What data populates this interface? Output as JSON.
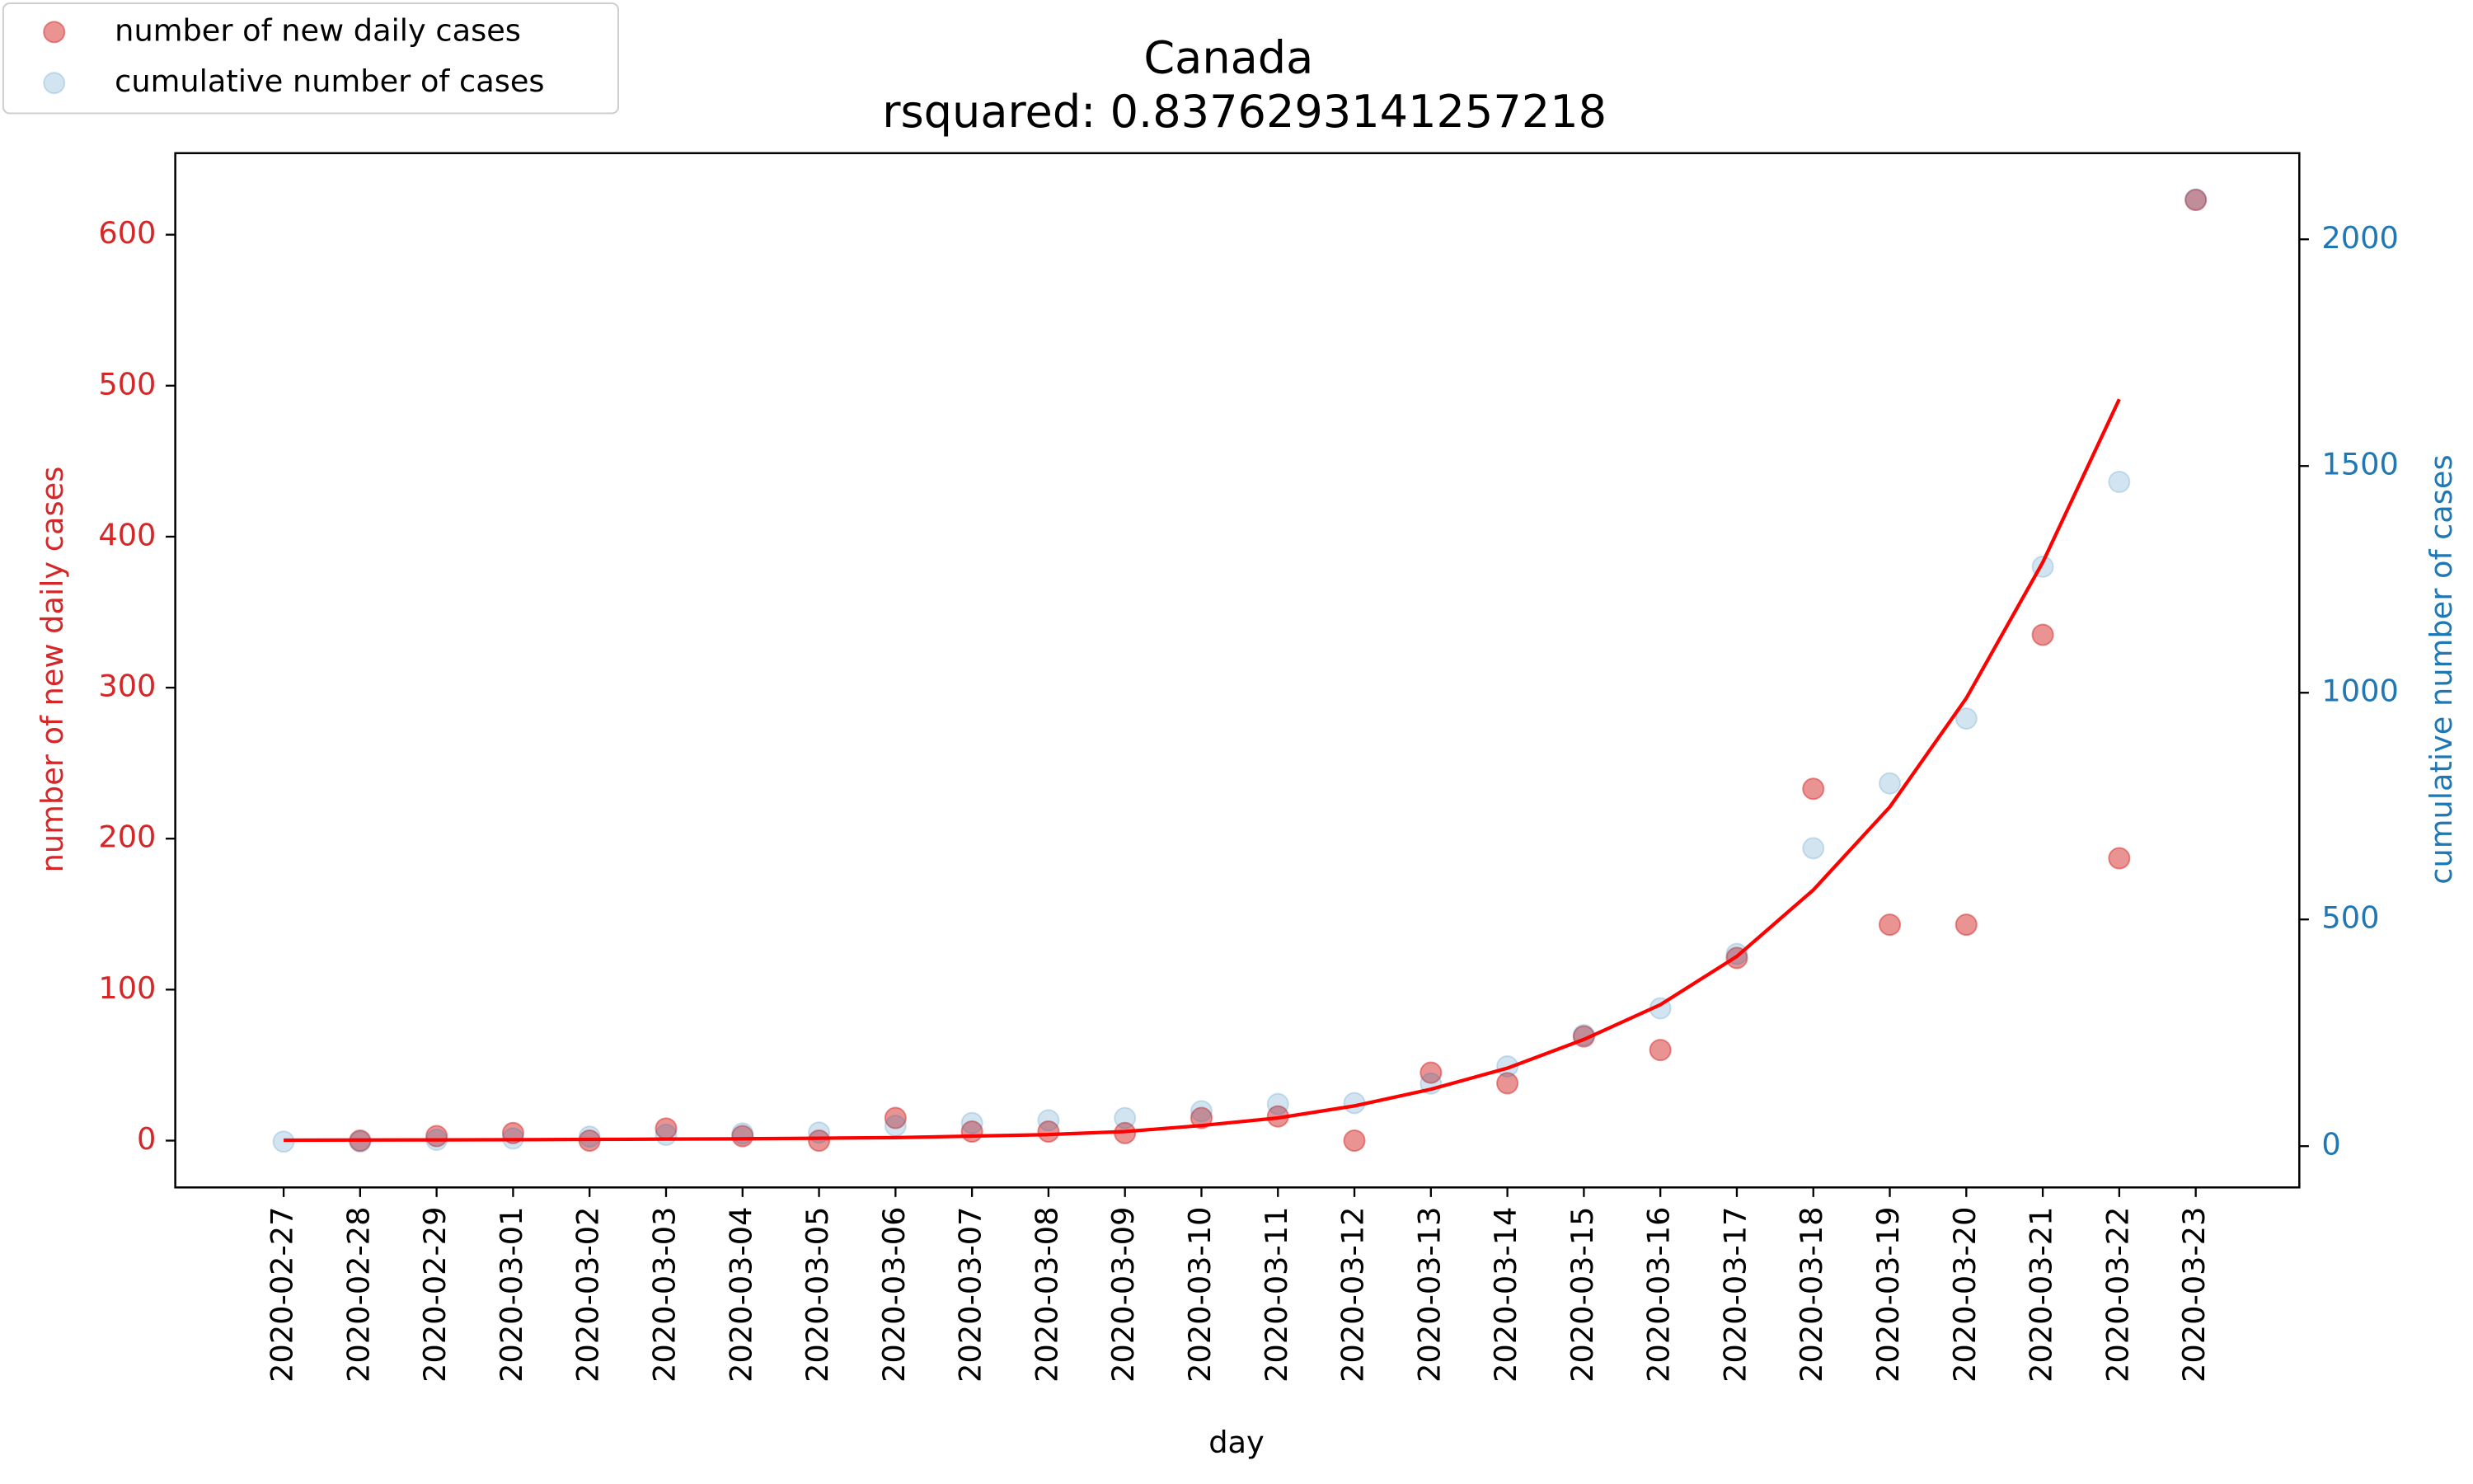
{
  "chart_data": {
    "type": "scatter",
    "title": "Canada",
    "subtitle": "rsquared: 0.8376293141257218",
    "x_label": "day",
    "y_label": "number of new daily cases",
    "y2_label": "cumulative number of cases",
    "categories": [
      "2020-02-27",
      "2020-02-28",
      "2020-02-29",
      "2020-03-01",
      "2020-03-02",
      "2020-03-03",
      "2020-03-04",
      "2020-03-05",
      "2020-03-06",
      "2020-03-07",
      "2020-03-08",
      "2020-03-09",
      "2020-03-10",
      "2020-03-11",
      "2020-03-12",
      "2020-03-13",
      "2020-03-14",
      "2020-03-15",
      "2020-03-16",
      "2020-03-17",
      "2020-03-18",
      "2020-03-19",
      "2020-03-20",
      "2020-03-21",
      "2020-03-22",
      "2020-03-23"
    ],
    "series": [
      {
        "name": "number of new daily cases",
        "color": "#d62728",
        "values": [
          null,
          0,
          3,
          5,
          0,
          8,
          3,
          0,
          15,
          6,
          6,
          5,
          15,
          16,
          0,
          45,
          38,
          69,
          60,
          121,
          233,
          143,
          143,
          335,
          187,
          623
        ]
      },
      {
        "name": "cumulative number of cases",
        "color": "#1f77b4",
        "axis": "y2",
        "values": [
          10,
          10,
          14,
          17,
          21,
          25,
          28,
          30,
          45,
          51,
          57,
          62,
          77,
          93,
          95,
          138,
          176,
          245,
          304,
          424,
          657,
          800,
          943,
          1278,
          1465,
          2088
        ]
      }
    ],
    "fit_line": {
      "color": "#ff0000",
      "values": [
        0.3,
        0.4,
        0.5,
        0.6,
        0.8,
        1.0,
        1.2,
        1.6,
        2,
        3,
        4,
        6,
        10,
        15,
        23,
        34,
        48,
        67,
        90,
        122,
        166,
        221,
        293,
        383,
        491,
        null
      ]
    },
    "ylim": [
      -31,
      654
    ],
    "yticks": [
      0,
      100,
      200,
      300,
      400,
      500,
      600
    ],
    "y2lim": [
      -91,
      2190
    ],
    "y2ticks": [
      0,
      500,
      1000,
      1500,
      2000
    ],
    "y_label_color": "#d62728",
    "y2_label_color": "#1f77b4",
    "legend": "upper left"
  }
}
